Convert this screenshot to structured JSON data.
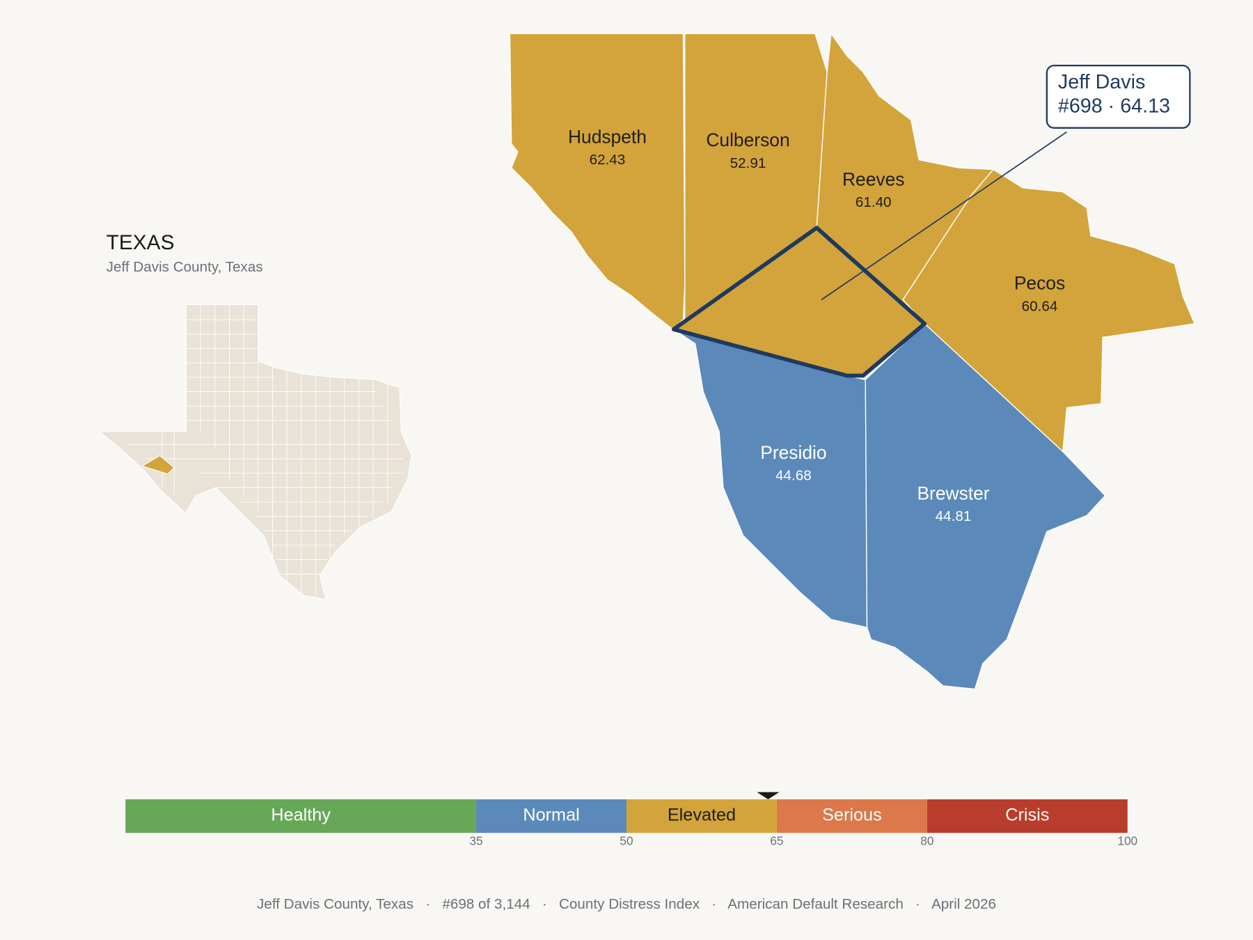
{
  "header": {
    "title": "TEXAS",
    "subtitle": "Jeff Davis County, Texas"
  },
  "counties": [
    {
      "name": "Hudspeth",
      "score": "62.43"
    },
    {
      "name": "Culberson",
      "score": "52.91"
    },
    {
      "name": "Reeves",
      "score": "61.40"
    },
    {
      "name": "Pecos",
      "score": "60.64"
    },
    {
      "name": "Presidio",
      "score": "44.68"
    },
    {
      "name": "Brewster",
      "score": "44.81"
    }
  ],
  "callout": {
    "name": "Jeff Davis",
    "detail": "#698 · 64.13"
  },
  "scale": {
    "xlim": [
      0,
      100
    ],
    "ticks": [
      35,
      50,
      65,
      80,
      100
    ],
    "bands": [
      {
        "label": "Healthy",
        "color": "#67a758",
        "text_color": "#ffffff"
      },
      {
        "label": "Normal",
        "color": "#5b8aba",
        "text_color": "#ffffff"
      },
      {
        "label": "Elevated",
        "color": "#d3a43b",
        "text_color": "#1e1e1e"
      },
      {
        "label": "Serious",
        "color": "#dc7849",
        "text_color": "#ffffff"
      },
      {
        "label": "Crisis",
        "color": "#b93d2c",
        "text_color": "#ffffff"
      }
    ],
    "marker": 64.13
  },
  "footer": "Jeff Davis County, Texas   ·   #698 of 3,144   ·   County Distress Index   ·   American Default Research   ·   April 2026"
}
